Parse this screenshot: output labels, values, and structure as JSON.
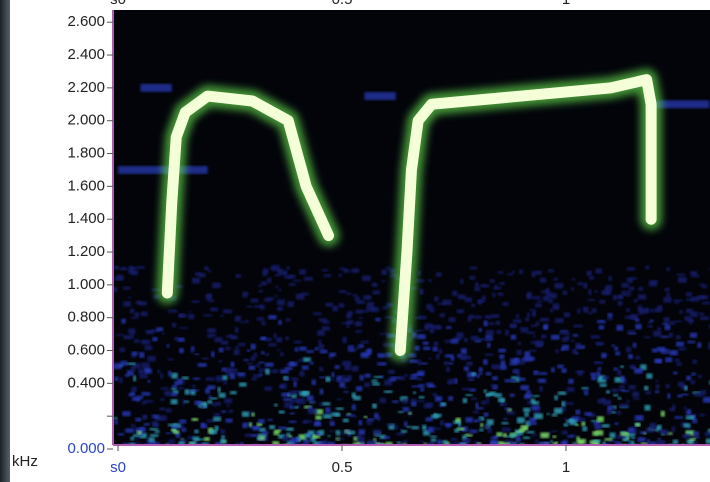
{
  "chart_data": {
    "type": "spectrogram",
    "ylabel": "kHz",
    "ylim": [
      0,
      2.65
    ],
    "yticks": [
      {
        "value": 0,
        "label": "0.000"
      },
      0.2,
      {
        "value": 0.4,
        "label": "0.400"
      },
      {
        "value": 0.6,
        "label": "0.600"
      },
      {
        "value": 0.8,
        "label": "0.800"
      },
      {
        "value": 1,
        "label": "1.000"
      },
      {
        "value": 1.2,
        "label": "1.200"
      },
      {
        "value": 1.4,
        "label": "1.400"
      },
      {
        "value": 1.6,
        "label": "1.600"
      },
      {
        "value": 1.8,
        "label": "1.800"
      },
      {
        "value": 2,
        "label": "2.000"
      },
      {
        "value": 2.2,
        "label": "2.200"
      },
      {
        "value": 2.4,
        "label": "2.400"
      },
      {
        "value": 2.6,
        "label": "2.600"
      }
    ],
    "xlim": [
      0,
      1.32
    ],
    "xticks": [
      {
        "value": 0,
        "label": "s0"
      },
      0.5,
      1
    ],
    "color": "#f4ffd8",
    "traces": [
      {
        "x": [
          0.11,
          0.12,
          0.13,
          0.15,
          0.2,
          0.3,
          0.38,
          0.42,
          0.47
        ],
        "y": [
          0.95,
          1.5,
          1.9,
          2.05,
          2.15,
          2.12,
          2.0,
          1.6,
          1.3
        ]
      },
      {
        "x": [
          0.63,
          0.645,
          0.655,
          0.67,
          0.7,
          0.9,
          1.1,
          1.18,
          1.19,
          1.19
        ],
        "y": [
          0.6,
          1.2,
          1.7,
          2.0,
          2.1,
          2.15,
          2.2,
          2.25,
          2.1,
          1.4
        ]
      }
    ]
  }
}
